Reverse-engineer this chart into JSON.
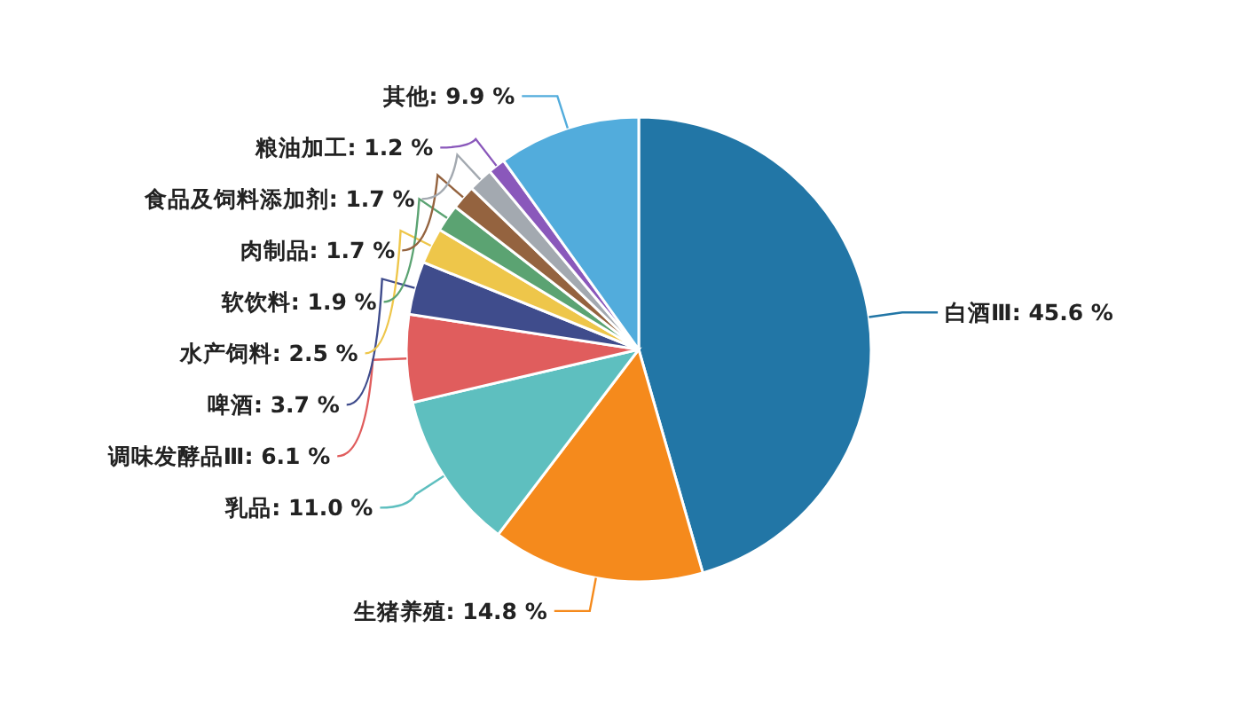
{
  "chart_data": {
    "type": "pie",
    "categories": [
      "白酒Ⅲ",
      "生猪养殖",
      "乳品",
      "调味发酵品Ⅲ",
      "啤酒",
      "水产饲料",
      "软饮料",
      "肉制品",
      "食品及饲料添加剂",
      "粮油加工",
      "其他"
    ],
    "values": [
      45.6,
      14.8,
      11.0,
      6.1,
      3.7,
      2.5,
      1.9,
      1.7,
      1.7,
      1.2,
      9.9
    ],
    "value_labels": [
      "45.6 %",
      "14.8 %",
      "11.0 %",
      "6.1 %",
      "3.7 %",
      "2.5 %",
      "1.9 %",
      "1.7 %",
      "1.7 %",
      "1.2 %",
      "9.9 %"
    ],
    "colors": [
      "#2276a6",
      "#f58a1c",
      "#5ebfbf",
      "#e05d5d",
      "#3f4c8c",
      "#eec64a",
      "#5ba372",
      "#94633f",
      "#a3a9b0",
      "#8a58bb",
      "#52acdc"
    ]
  }
}
